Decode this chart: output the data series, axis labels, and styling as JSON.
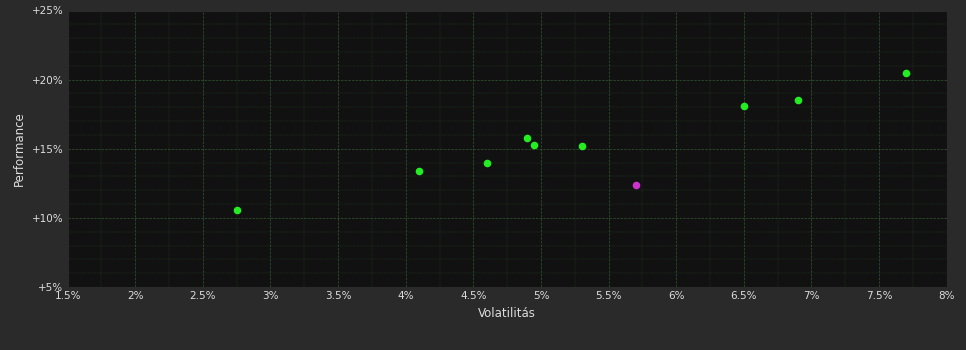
{
  "xlabel": "Volatilitás",
  "ylabel": "Performance",
  "background_color": "#2a2a2a",
  "plot_background_color": "#111111",
  "grid_color": "#3a6b3a",
  "grid_linestyle": "--",
  "text_color": "#dddddd",
  "xlim": [
    0.015,
    0.08
  ],
  "ylim": [
    0.05,
    0.25
  ],
  "xticks": [
    0.015,
    0.02,
    0.025,
    0.03,
    0.035,
    0.04,
    0.045,
    0.05,
    0.055,
    0.06,
    0.065,
    0.07,
    0.075,
    0.08
  ],
  "yticks": [
    0.05,
    0.1,
    0.15,
    0.2,
    0.25
  ],
  "minor_xticks": [
    0.0175,
    0.0225,
    0.0275,
    0.0325,
    0.0375,
    0.0425,
    0.0475,
    0.0525,
    0.0575,
    0.0625,
    0.0675,
    0.0725,
    0.0775
  ],
  "minor_yticks": [
    0.06,
    0.07,
    0.08,
    0.09,
    0.11,
    0.12,
    0.13,
    0.14,
    0.16,
    0.17,
    0.18,
    0.19,
    0.21,
    0.22,
    0.23,
    0.24
  ],
  "xtick_labels": [
    "1.5%",
    "2%",
    "2.5%",
    "3%",
    "3.5%",
    "4%",
    "4.5%",
    "5%",
    "5.5%",
    "6%",
    "6.5%",
    "7%",
    "7.5%",
    "8%"
  ],
  "ytick_labels": [
    "+5%",
    "+10%",
    "+15%",
    "+20%",
    "+25%"
  ],
  "green_dots": [
    [
      0.0275,
      0.106
    ],
    [
      0.041,
      0.134
    ],
    [
      0.046,
      0.14
    ],
    [
      0.049,
      0.158
    ],
    [
      0.0495,
      0.153
    ],
    [
      0.053,
      0.152
    ],
    [
      0.065,
      0.181
    ],
    [
      0.069,
      0.185
    ],
    [
      0.077,
      0.205
    ]
  ],
  "magenta_dots": [
    [
      0.057,
      0.124
    ]
  ],
  "dot_size": 20,
  "green_color": "#22ee22",
  "magenta_color": "#cc33cc"
}
